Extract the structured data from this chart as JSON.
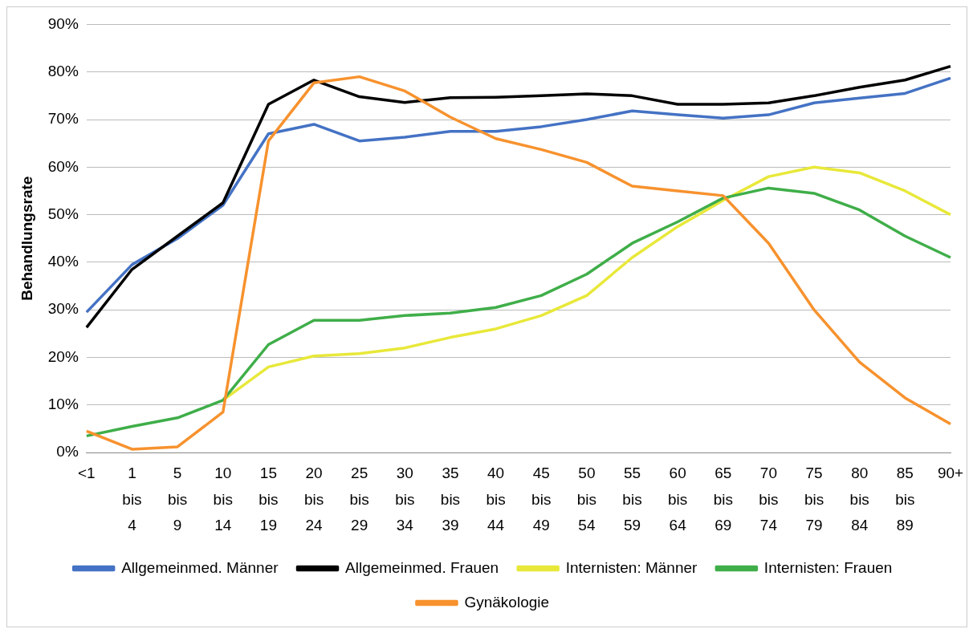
{
  "chart_data": {
    "type": "line",
    "ylabel": "Behandlungsrate",
    "categories": [
      "<1",
      "1 bis 4",
      "5 bis 9",
      "10 bis 14",
      "15 bis 19",
      "20 bis 24",
      "25 bis 29",
      "30 bis 34",
      "35 bis 39",
      "40 bis 44",
      "45 bis 49",
      "50 bis 54",
      "55 bis 59",
      "60 bis 64",
      "65 bis 69",
      "70 bis 74",
      "75 bis 79",
      "80 bis 84",
      "85 bis 89",
      "90+"
    ],
    "series": [
      {
        "name": "Allgemeinmed. Männer",
        "color": "#4472c4",
        "values": [
          29.5,
          39.5,
          45,
          52,
          67,
          69,
          65.5,
          66.3,
          67.5,
          67.5,
          68.5,
          70,
          71.8,
          71,
          70.3,
          71,
          73.5,
          74.5,
          75.5,
          78.7
        ]
      },
      {
        "name": "Allgemeinmed. Frauen",
        "color": "#000000",
        "values": [
          26.3,
          38.5,
          45.5,
          52.5,
          73.2,
          78.3,
          74.8,
          73.6,
          74.6,
          74.7,
          75,
          75.4,
          75,
          73.2,
          73.2,
          73.5,
          75,
          76.8,
          78.3,
          81.2
        ]
      },
      {
        "name": "Internisten: Männer",
        "color": "#e8e83a",
        "values": [
          null,
          null,
          null,
          11,
          18,
          20.3,
          20.8,
          22,
          24.2,
          26,
          28.8,
          33,
          41,
          47.5,
          53,
          58,
          60,
          58.8,
          55,
          50
        ]
      },
      {
        "name": "Internisten: Frauen",
        "color": "#3fae49",
        "values": [
          3.5,
          5.5,
          7.3,
          11,
          22.7,
          27.8,
          27.8,
          28.8,
          29.3,
          30.5,
          33,
          37.5,
          44,
          48.5,
          53.5,
          55.6,
          54.5,
          51,
          45.5,
          41
        ]
      },
      {
        "name": "Gynäkologie",
        "color": "#f7922e",
        "values": [
          4.5,
          0.7,
          1.2,
          8.5,
          65.5,
          77.7,
          79,
          76,
          70.5,
          66,
          63.7,
          61,
          56,
          55,
          54,
          44,
          30,
          19,
          11.5,
          6
        ]
      }
    ],
    "ylim": [
      0,
      90
    ],
    "yticks": [
      {
        "value": 0,
        "label": "0%"
      },
      {
        "value": 10,
        "label": "10%"
      },
      {
        "value": 20,
        "label": "20%"
      },
      {
        "value": 30,
        "label": "30%"
      },
      {
        "value": 40,
        "label": "40%"
      },
      {
        "value": 50,
        "label": "50%"
      },
      {
        "value": 60,
        "label": "60%"
      },
      {
        "value": 70,
        "label": "70%"
      },
      {
        "value": 80,
        "label": "80%"
      },
      {
        "value": 90,
        "label": "90%"
      }
    ],
    "grid": "y",
    "legend": "bottom",
    "marker": "none",
    "line_style": "solid"
  }
}
